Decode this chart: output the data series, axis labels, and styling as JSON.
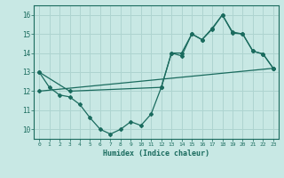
{
  "bg_color": "#c8e8e4",
  "grid_color": "#aed4d0",
  "line_color": "#1a6b5e",
  "xlabel": "Humidex (Indice chaleur)",
  "xlim": [
    -0.5,
    23.5
  ],
  "ylim": [
    9.5,
    16.5
  ],
  "xticks": [
    0,
    1,
    2,
    3,
    4,
    5,
    6,
    7,
    8,
    9,
    10,
    11,
    12,
    13,
    14,
    15,
    16,
    17,
    18,
    19,
    20,
    21,
    22,
    23
  ],
  "yticks": [
    10,
    11,
    12,
    13,
    14,
    15,
    16
  ],
  "series": [
    {
      "x": [
        0,
        1,
        2,
        3,
        4,
        5,
        6,
        7,
        8,
        9,
        10,
        11,
        12,
        13,
        14,
        15,
        16,
        17,
        18,
        19,
        20,
        21,
        22,
        23
      ],
      "y": [
        13.0,
        12.2,
        11.8,
        11.7,
        11.3,
        10.6,
        10.0,
        9.75,
        10.0,
        10.4,
        10.2,
        10.8,
        12.2,
        14.0,
        13.85,
        15.0,
        14.7,
        15.3,
        16.0,
        15.1,
        15.0,
        14.1,
        13.95,
        13.2
      ]
    },
    {
      "x": [
        0,
        3,
        12,
        13,
        14,
        15,
        16,
        17,
        18,
        19,
        20,
        21,
        22,
        23
      ],
      "y": [
        13.0,
        12.0,
        12.2,
        14.0,
        14.0,
        15.0,
        14.7,
        15.25,
        16.0,
        15.05,
        15.0,
        14.1,
        13.95,
        13.2
      ]
    },
    {
      "x": [
        0,
        23
      ],
      "y": [
        12.0,
        13.2
      ]
    }
  ]
}
